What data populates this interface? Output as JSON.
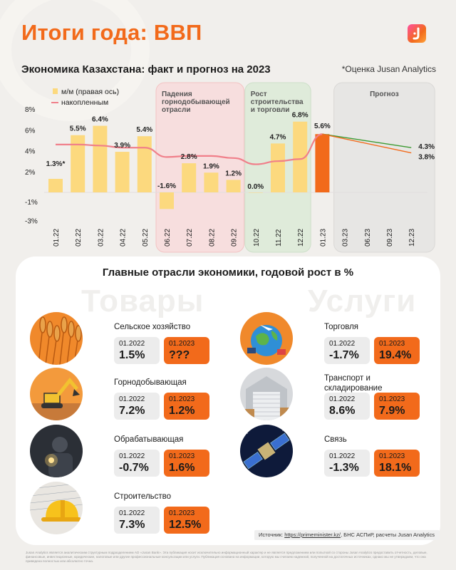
{
  "header": {
    "title": "Итоги года: ВВП",
    "subtitle": "Экономика Казахстана: факт и прогноз на 2023",
    "note": "*Оценка Jusan Analytics"
  },
  "colors": {
    "accent": "#f26a1b",
    "bar": "#fcd97e",
    "bar_highlight": "#f26a1b",
    "line": "#f07f8a",
    "forecast_line_a": "#3c9a32",
    "forecast_line_b": "#f26a1b",
    "zone_pink": "#f9dcdc",
    "zone_green": "#dcebd8",
    "zone_grey": "#e6e5e3"
  },
  "chart_data": {
    "type": "bar",
    "categories": [
      "01.22",
      "02.22",
      "03.22",
      "04.22",
      "05.22",
      "06.22",
      "07.22",
      "08.22",
      "09.22",
      "10.22",
      "11.22",
      "12.22",
      "01.23",
      "03.23",
      "06.23",
      "09.23",
      "12.23"
    ],
    "yticks": [
      "8%",
      "6%",
      "4%",
      "2%",
      "-1%",
      "-3%"
    ],
    "ylim": [
      -3,
      8
    ],
    "legend": [
      "м/м (правая ось)",
      "накопленным"
    ],
    "legend_position": "top-left",
    "series": [
      {
        "name": "м/м (правая ось)",
        "type": "bar",
        "values": [
          1.3,
          5.5,
          6.4,
          3.9,
          5.4,
          -1.6,
          2.8,
          1.9,
          1.2,
          0.0,
          4.7,
          6.8,
          5.6,
          null,
          null,
          null,
          null
        ],
        "labels": [
          "1.3%*",
          "5.5%",
          "6.4%",
          "3.9%",
          "5.4%",
          "-1.6%",
          "2.8%",
          "1.9%",
          "1.2%",
          "0.0%",
          "4.7%",
          "6.8%",
          "5.6%",
          "",
          "",
          "",
          ""
        ]
      },
      {
        "name": "накопленным",
        "type": "line",
        "values": [
          4.6,
          4.6,
          4.5,
          4.3,
          4.3,
          3.4,
          3.5,
          3.5,
          3.3,
          2.7,
          3.0,
          3.2,
          5.6,
          null,
          null,
          null,
          null
        ]
      }
    ],
    "forecast": [
      {
        "from": 5.6,
        "to": 4.3,
        "label": "4.3%"
      },
      {
        "from": 5.6,
        "to": 3.8,
        "label": "3.8%"
      }
    ],
    "zones": [
      {
        "label": "Падения горнодобывающей отрасли",
        "lines": [
          "Падения",
          "горнодобывающей",
          "отрасли"
        ],
        "start": "06.22",
        "end": "09.22"
      },
      {
        "label": "Рост строительства и торговли",
        "lines": [
          "Рост",
          "строительства",
          "и торговли"
        ],
        "start": "10.22",
        "end": "12.22"
      },
      {
        "label": "Прогноз",
        "lines": [
          "Прогноз"
        ],
        "start": "03.23",
        "end": "12.23"
      }
    ]
  },
  "panel": {
    "title": "Главные отрасли экономики, годовой рост в %",
    "goods_word": "Товары",
    "services_word": "Услуги",
    "goods": [
      {
        "name": "Сельское хозяйство",
        "y1": "01.2022",
        "v1": "1.5%",
        "y2": "01.2023",
        "v2": "???",
        "icon": "wheat-image"
      },
      {
        "name": "Горнодобывающая",
        "y1": "01.2022",
        "v1": "7.2%",
        "y2": "01.2023",
        "v2": "1.2%",
        "icon": "excavator-image"
      },
      {
        "name": "Обрабатывающая",
        "y1": "01.2022",
        "v1": "-0.7%",
        "y2": "01.2023",
        "v2": "1.6%",
        "icon": "welder-image"
      },
      {
        "name": "Строительство",
        "y1": "01.2022",
        "v1": "7.3%",
        "y2": "01.2023",
        "v2": "12.5%",
        "icon": "hardhat-image"
      }
    ],
    "services": [
      {
        "name": "Торговля",
        "y1": "01.2022",
        "v1": "-1.7%",
        "y2": "01.2023",
        "v2": "19.4%",
        "icon": "globe-image"
      },
      {
        "name": "Транспорт и складирование",
        "y1": "01.2022",
        "v1": "8.6%",
        "y2": "01.2023",
        "v2": "7.9%",
        "icon": "warehouse-image"
      },
      {
        "name": "Связь",
        "y1": "01.2022",
        "v1": "-1.3%",
        "y2": "01.2023",
        "v2": "18.1%",
        "icon": "satellite-image"
      }
    ],
    "source_prefix": "Источник:",
    "source_link": "https://primeminister.kz/",
    "source_suffix": ", БНС АСПиР, расчеты Jusan Analytics"
  },
  "disclaimer": "Jusan Analytics является аналитическим структурным подразделением АО «Jusan Bank». Эта публикация носит исключительно информационный характер и не является предложением или попыткой со стороны Jusan Analytics предоставить отчетность, деловые, финансовые, инвестиционные, юридические, налоговые или другие профессиональные консультации или услуги. Публикация основана на информации, которую мы считаем надежной, полученной на достаточных источниках, однако мы не утверждаем, что она приведена полностью или абсолютно точна."
}
